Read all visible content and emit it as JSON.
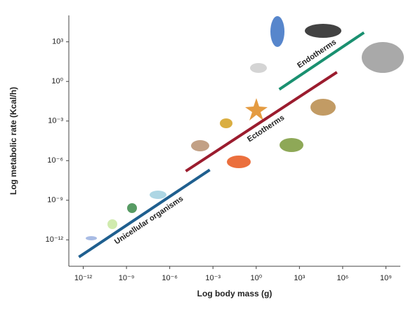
{
  "chart_data": {
    "type": "line",
    "x_label": "Log body mass (g)",
    "y_label": "Log metabolic rate (Kcal/h)",
    "log_scale": {
      "x": true,
      "y": true
    },
    "xlim": [
      1e-13,
      10000000000.0
    ],
    "ylim": [
      1e-14,
      100000.0
    ],
    "xticks": [
      {
        "value": 1e-12,
        "label": "10⁻¹²"
      },
      {
        "value": 1e-09,
        "label": "10⁻⁹"
      },
      {
        "value": 1e-06,
        "label": "10⁻⁶"
      },
      {
        "value": 0.001,
        "label": "10⁻³"
      },
      {
        "value": 1,
        "label": "10⁰"
      },
      {
        "value": 1000.0,
        "label": "10³"
      },
      {
        "value": 1000000.0,
        "label": "10⁶"
      },
      {
        "value": 1000000000.0,
        "label": "10⁹"
      }
    ],
    "yticks": [
      {
        "value": 1e-12,
        "label": "10⁻¹²"
      },
      {
        "value": 1e-09,
        "label": "10⁻⁹"
      },
      {
        "value": 1e-06,
        "label": "10⁻⁶"
      },
      {
        "value": 0.001,
        "label": "10⁻³"
      },
      {
        "value": 1,
        "label": "10⁰"
      },
      {
        "value": 1000.0,
        "label": "10³"
      }
    ],
    "series": [
      {
        "name": "Unicellular organisms",
        "color": "#1f5f8f",
        "x": [
          5e-13,
          0.0006
        ],
        "values": [
          5e-14,
          2e-07
        ]
      },
      {
        "name": "Ectotherms",
        "color": "#9b1c2e",
        "x": [
          1.3e-05,
          400000.0
        ],
        "values": [
          1.6e-07,
          5
        ]
      },
      {
        "name": "Endotherms",
        "color": "#1a9070",
        "x": [
          40,
          30000000.0
        ],
        "values": [
          0.25,
          5000
        ]
      }
    ]
  }
}
